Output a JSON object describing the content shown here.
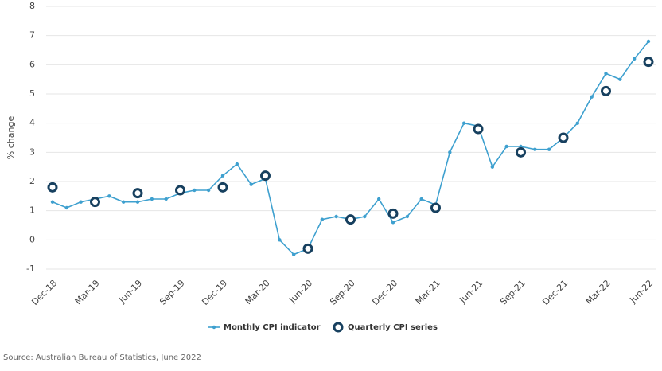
{
  "chart_data": {
    "type": "line",
    "y_label": "% change",
    "source": "Source: Australian Bureau of Statistics, June 2022",
    "categories": [
      "Dec-18",
      null,
      null,
      "Mar-19",
      null,
      null,
      "Jun-19",
      null,
      null,
      "Sep-19",
      null,
      null,
      "Dec-19",
      null,
      null,
      "Mar-20",
      null,
      null,
      "Jun-20",
      null,
      null,
      "Sep-20",
      null,
      null,
      "Dec-20",
      null,
      null,
      "Mar-21",
      null,
      null,
      "Jun-21",
      null,
      null,
      "Sep-21",
      null,
      null,
      "Dec-21",
      null,
      null,
      "Mar-22",
      null,
      null,
      "Jun-22"
    ],
    "series": [
      {
        "name": "Monthly CPI indicator",
        "color": "#3ea0cf",
        "mode": "lines+markers",
        "values": [
          1.3,
          1.1,
          1.3,
          1.4,
          1.5,
          1.3,
          1.3,
          1.4,
          1.4,
          1.6,
          1.7,
          1.7,
          2.2,
          2.6,
          1.9,
          2.1,
          0.0,
          -0.5,
          -0.3,
          0.7,
          0.8,
          0.7,
          0.8,
          1.4,
          0.6,
          0.8,
          1.4,
          1.2,
          3.0,
          4.0,
          3.9,
          2.5,
          3.2,
          3.2,
          3.1,
          3.1,
          3.5,
          4.0,
          4.9,
          5.7,
          5.5,
          6.2,
          6.8
        ]
      },
      {
        "name": "Quarterly CPI series",
        "color": "#17405f",
        "mode": "markers",
        "values": [
          1.8,
          null,
          null,
          1.3,
          null,
          null,
          1.6,
          null,
          null,
          1.7,
          null,
          null,
          1.8,
          null,
          null,
          2.2,
          null,
          null,
          -0.3,
          null,
          null,
          0.7,
          null,
          null,
          0.9,
          null,
          null,
          1.1,
          null,
          null,
          3.8,
          null,
          null,
          3.0,
          null,
          null,
          3.5,
          null,
          null,
          5.1,
          null,
          null,
          6.1
        ]
      }
    ],
    "ylim": [
      -1,
      8
    ],
    "yticks": [
      -1,
      0,
      1,
      2,
      3,
      4,
      5,
      6,
      7,
      8
    ],
    "grid": true
  }
}
